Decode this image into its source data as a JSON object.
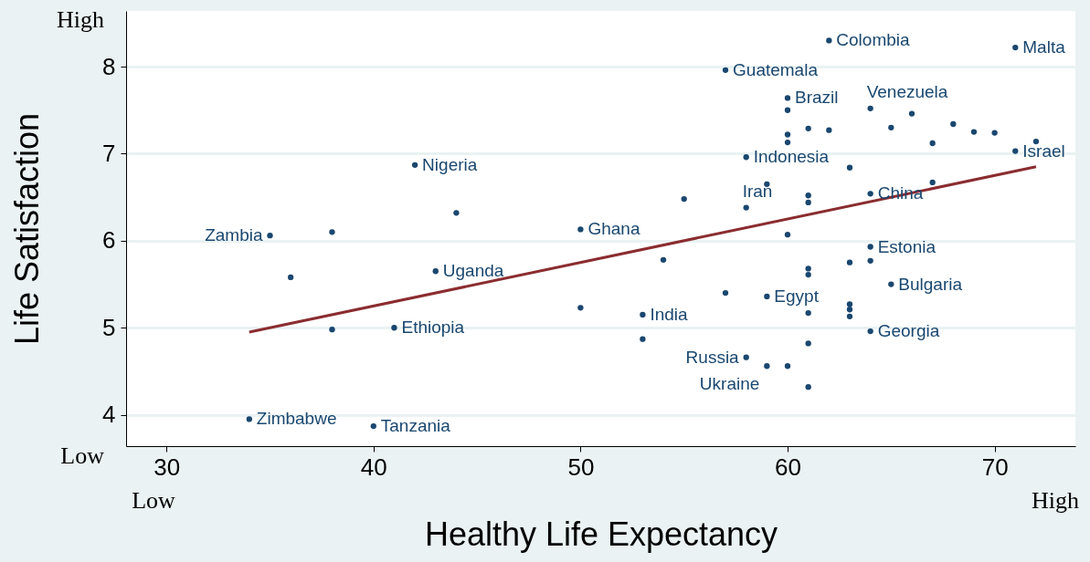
{
  "chart_data": {
    "type": "scatter",
    "xlabel": "Healthy Life Expectancy",
    "ylabel": "Life Satisfaction",
    "xlim": [
      28.05,
      73.9
    ],
    "ylim": [
      3.64,
      8.64
    ],
    "xticks": [
      30,
      40,
      50,
      60,
      70
    ],
    "yticks": [
      4,
      5,
      6,
      7,
      8
    ],
    "grid": "y",
    "series": [
      {
        "marker": "circle",
        "color": "#1a476f",
        "x": [
          62,
          71,
          57,
          60,
          60,
          64,
          66,
          61,
          62,
          65,
          68,
          69,
          70,
          60,
          60,
          67,
          72,
          71,
          42,
          58,
          63,
          59,
          55,
          64,
          67,
          61,
          61,
          58,
          44,
          35,
          38,
          50,
          60,
          64,
          54,
          63,
          64,
          61,
          61,
          36,
          43,
          65,
          57,
          59,
          50,
          63,
          63,
          63,
          53,
          61,
          41,
          38,
          64,
          53,
          61,
          58,
          59,
          60,
          61,
          34,
          40
        ],
        "values": [
          8.3,
          8.22,
          7.96,
          7.64,
          7.5,
          7.52,
          7.46,
          7.29,
          7.27,
          7.3,
          7.34,
          7.25,
          7.24,
          7.22,
          7.13,
          7.12,
          7.14,
          7.03,
          6.87,
          6.96,
          6.84,
          6.65,
          6.48,
          6.54,
          6.67,
          6.52,
          6.44,
          6.38,
          6.32,
          6.06,
          6.1,
          6.13,
          6.07,
          5.93,
          5.78,
          5.75,
          5.77,
          5.68,
          5.61,
          5.58,
          5.65,
          5.5,
          5.4,
          5.36,
          5.23,
          5.27,
          5.21,
          5.13,
          5.15,
          5.17,
          5.0,
          4.98,
          4.96,
          4.87,
          4.82,
          4.66,
          4.56,
          4.56,
          4.32,
          3.95,
          3.87
        ]
      },
      {
        "type": "line",
        "color": "#8b2c30",
        "x": [
          34,
          72
        ],
        "values": [
          4.95,
          6.85
        ]
      }
    ],
    "annotations": [
      "High",
      "Low",
      "Low",
      "High",
      {
        "text": "Colombia",
        "x": 62,
        "y": 8.3
      },
      {
        "text": "Malta",
        "x": 71,
        "y": 8.22
      },
      {
        "text": "Guatemala",
        "x": 57,
        "y": 7.96
      },
      {
        "text": "Brazil",
        "x": 60,
        "y": 7.64
      },
      {
        "text": "Venezuela",
        "x": 64,
        "y": 7.52
      },
      {
        "text": "Israel",
        "x": 71,
        "y": 7.03
      },
      {
        "text": "Nigeria",
        "x": 42,
        "y": 6.87
      },
      {
        "text": "Indonesia",
        "x": 58,
        "y": 6.96
      },
      {
        "text": "China",
        "x": 64,
        "y": 6.54
      },
      {
        "text": "Iran",
        "x": 58,
        "y": 6.38
      },
      {
        "text": "Zambia",
        "x": 35,
        "y": 6.06
      },
      {
        "text": "Ghana",
        "x": 50,
        "y": 6.13
      },
      {
        "text": "Estonia",
        "x": 64,
        "y": 5.93
      },
      {
        "text": "Uganda",
        "x": 43,
        "y": 5.65
      },
      {
        "text": "Bulgaria",
        "x": 65,
        "y": 5.5
      },
      {
        "text": "Egypt",
        "x": 59,
        "y": 5.36
      },
      {
        "text": "India",
        "x": 53,
        "y": 5.15
      },
      {
        "text": "Ethiopia",
        "x": 41,
        "y": 5.0
      },
      {
        "text": "Georgia",
        "x": 64,
        "y": 4.96
      },
      {
        "text": "Russia",
        "x": 58,
        "y": 4.66
      },
      {
        "text": "Ukraine",
        "x": 59,
        "y": 4.56
      },
      {
        "text": "Zimbabwe",
        "x": 34,
        "y": 3.95
      },
      {
        "text": "Tanzania",
        "x": 40,
        "y": 3.87
      }
    ]
  }
}
